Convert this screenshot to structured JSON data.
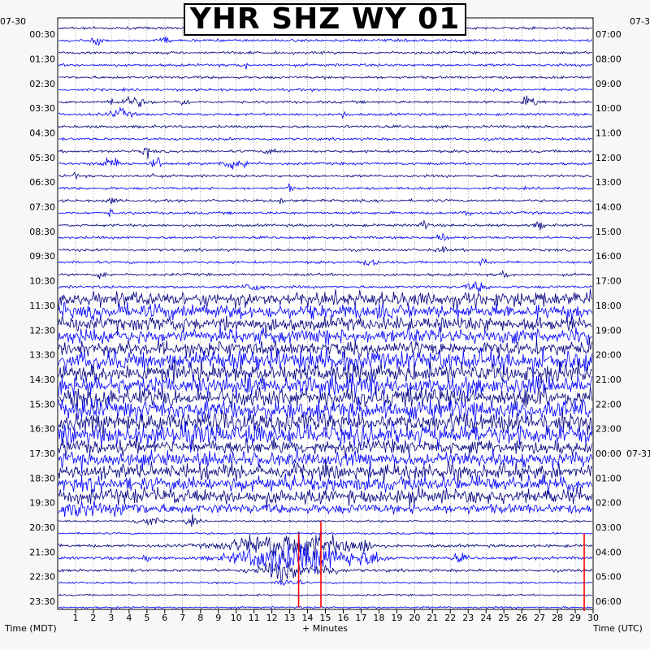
{
  "title": "YHR SHZ WY 01",
  "left_date": "07-30",
  "right_date": "07-3",
  "right_date_2": "07-31",
  "left_axis_title": "Time (MDT)",
  "right_axis_title": "Time (UTC)",
  "x_axis_title": "+ Minutes",
  "chart_data": {
    "type": "helicorder",
    "title": "YHR SHZ WY 01",
    "xlabel": "+ Minutes",
    "x_ticks": [
      "1",
      "2",
      "3",
      "4",
      "5",
      "6",
      "7",
      "8",
      "9",
      "10",
      "11",
      "12",
      "13",
      "14",
      "15",
      "16",
      "17",
      "18",
      "19",
      "20",
      "21",
      "22",
      "23",
      "24",
      "25",
      "26",
      "27",
      "28",
      "29",
      "30"
    ],
    "xlim": [
      0,
      30
    ],
    "left_labels": [
      "00:30",
      "01:30",
      "02:30",
      "03:30",
      "04:30",
      "05:30",
      "06:30",
      "07:30",
      "08:30",
      "09:30",
      "10:30",
      "11:30",
      "12:30",
      "13:30",
      "14:30",
      "15:30",
      "16:30",
      "17:30",
      "18:30",
      "19:30",
      "20:30",
      "21:30",
      "22:30",
      "23:30"
    ],
    "right_labels": [
      "07:00",
      "08:00",
      "09:00",
      "10:00",
      "11:00",
      "12:00",
      "13:00",
      "14:00",
      "15:00",
      "16:00",
      "17:00",
      "18:00",
      "19:00",
      "20:00",
      "21:00",
      "22:00",
      "23:00",
      "00:00",
      "01:00",
      "02:00",
      "03:00",
      "04:00",
      "05:00",
      "06:00"
    ],
    "trace_count": 48,
    "trace_colors": [
      "#000080",
      "#0000ff"
    ],
    "marker_color": "#ff0000",
    "high_activity_window": "11:30 - 19:30 MDT",
    "grid": true
  }
}
